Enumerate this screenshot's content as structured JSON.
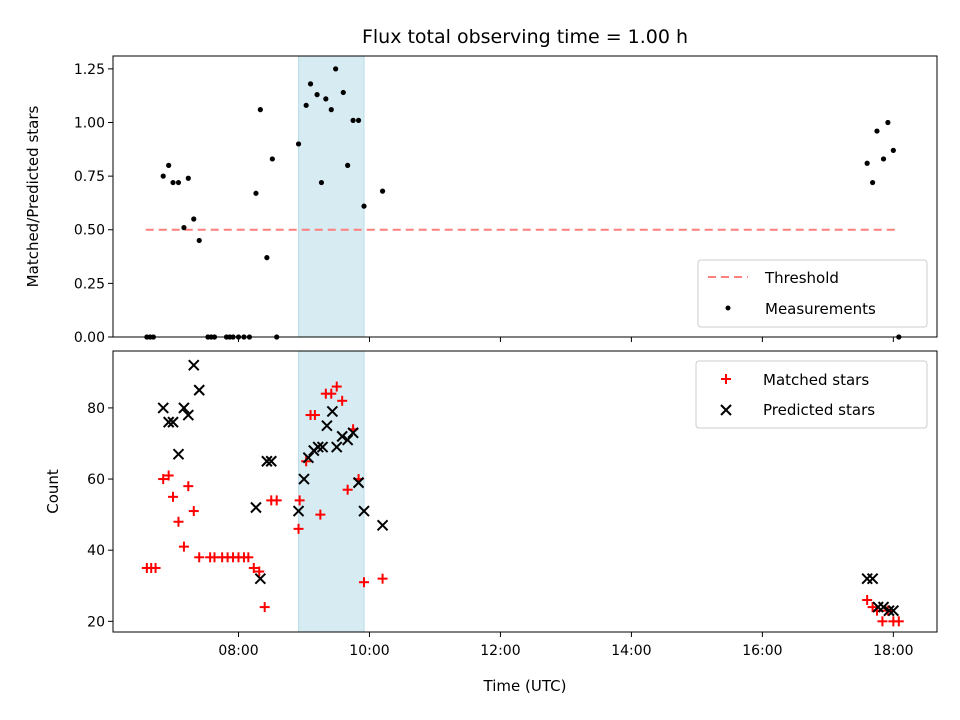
{
  "chart_data": [
    {
      "type": "scatter",
      "title": "Flux total observing time = 1.00 h",
      "ylabel": "Matched/Predicted stars",
      "xlabel": "",
      "ylim": [
        0,
        1.31
      ],
      "xlim": [
        "06:05",
        "18:40"
      ],
      "yticks": [
        "0.00",
        "0.25",
        "0.50",
        "0.75",
        "1.00",
        "1.25"
      ],
      "shaded_interval": [
        "08:55",
        "09:55"
      ],
      "threshold": {
        "name": "Threshold",
        "value": 0.5,
        "x_start": "06:35",
        "x_end": "18:05",
        "color": "#ff7f7f"
      },
      "legend_position": "bottom-right",
      "series": [
        {
          "name": "Measurements",
          "color": "#000000",
          "points": [
            [
              "06:36",
              0.0
            ],
            [
              "06:39",
              0.0
            ],
            [
              "06:42",
              0.0
            ],
            [
              "06:51",
              0.75
            ],
            [
              "06:56",
              0.8
            ],
            [
              "07:00",
              0.72
            ],
            [
              "07:05",
              0.72
            ],
            [
              "07:10",
              0.51
            ],
            [
              "07:14",
              0.74
            ],
            [
              "07:19",
              0.55
            ],
            [
              "07:24",
              0.45
            ],
            [
              "07:32",
              0.0
            ],
            [
              "07:35",
              0.0
            ],
            [
              "07:38",
              0.0
            ],
            [
              "07:49",
              0.0
            ],
            [
              "07:52",
              0.0
            ],
            [
              "07:55",
              0.0
            ],
            [
              "08:00",
              0.0
            ],
            [
              "08:05",
              0.0
            ],
            [
              "08:10",
              0.0
            ],
            [
              "08:16",
              0.67
            ],
            [
              "08:20",
              1.06
            ],
            [
              "08:26",
              0.37
            ],
            [
              "08:31",
              0.83
            ],
            [
              "08:35",
              0.0
            ],
            [
              "08:55",
              0.9
            ],
            [
              "09:02",
              1.08
            ],
            [
              "09:06",
              1.18
            ],
            [
              "09:12",
              1.13
            ],
            [
              "09:16",
              0.72
            ],
            [
              "09:20",
              1.11
            ],
            [
              "09:25",
              1.06
            ],
            [
              "09:29",
              1.25
            ],
            [
              "09:36",
              1.14
            ],
            [
              "09:40",
              0.8
            ],
            [
              "09:45",
              1.01
            ],
            [
              "09:50",
              1.01
            ],
            [
              "09:55",
              0.61
            ],
            [
              "10:12",
              0.68
            ],
            [
              "17:36",
              0.81
            ],
            [
              "17:41",
              0.72
            ],
            [
              "17:45",
              0.96
            ],
            [
              "17:51",
              0.83
            ],
            [
              "17:55",
              1.0
            ],
            [
              "18:00",
              0.87
            ],
            [
              "18:05",
              0.0
            ]
          ]
        }
      ]
    },
    {
      "type": "scatter",
      "title": "",
      "xlabel": "Time (UTC)",
      "ylabel": "Count",
      "ylim": [
        17,
        96
      ],
      "xlim": [
        "06:05",
        "18:40"
      ],
      "yticks": [
        "20",
        "40",
        "60",
        "80"
      ],
      "xticks": [
        "08:00",
        "10:00",
        "12:00",
        "14:00",
        "16:00",
        "18:00"
      ],
      "shaded_interval": [
        "08:55",
        "09:55"
      ],
      "legend_position": "top-right",
      "series": [
        {
          "name": "Matched stars",
          "color": "#ff0000",
          "marker": "plus",
          "points": [
            [
              "06:36",
              35
            ],
            [
              "06:40",
              35
            ],
            [
              "06:44",
              35
            ],
            [
              "06:51",
              60
            ],
            [
              "06:56",
              61
            ],
            [
              "07:00",
              55
            ],
            [
              "07:05",
              48
            ],
            [
              "07:10",
              41
            ],
            [
              "07:14",
              58
            ],
            [
              "07:19",
              51
            ],
            [
              "07:24",
              38
            ],
            [
              "07:34",
              38
            ],
            [
              "07:38",
              38
            ],
            [
              "07:45",
              38
            ],
            [
              "07:50",
              38
            ],
            [
              "07:55",
              38
            ],
            [
              "08:00",
              38
            ],
            [
              "08:05",
              38
            ],
            [
              "08:09",
              38
            ],
            [
              "08:14",
              35
            ],
            [
              "08:19",
              34
            ],
            [
              "08:24",
              24
            ],
            [
              "08:30",
              54
            ],
            [
              "08:35",
              54
            ],
            [
              "08:55",
              46
            ],
            [
              "08:56",
              54
            ],
            [
              "09:02",
              65
            ],
            [
              "09:06",
              78
            ],
            [
              "09:10",
              78
            ],
            [
              "09:15",
              50
            ],
            [
              "09:20",
              84
            ],
            [
              "09:25",
              84
            ],
            [
              "09:30",
              86
            ],
            [
              "09:35",
              82
            ],
            [
              "09:40",
              57
            ],
            [
              "09:45",
              74
            ],
            [
              "09:50",
              60
            ],
            [
              "09:55",
              31
            ],
            [
              "10:12",
              32
            ],
            [
              "17:36",
              26
            ],
            [
              "17:41",
              24
            ],
            [
              "17:45",
              23
            ],
            [
              "17:50",
              20
            ],
            [
              "17:55",
              23
            ],
            [
              "18:00",
              20
            ],
            [
              "18:05",
              20
            ]
          ]
        },
        {
          "name": "Predicted stars",
          "color": "#000000",
          "marker": "x",
          "points": [
            [
              "06:51",
              80
            ],
            [
              "06:56",
              76
            ],
            [
              "07:00",
              76
            ],
            [
              "07:05",
              67
            ],
            [
              "07:10",
              80
            ],
            [
              "07:14",
              78
            ],
            [
              "07:19",
              92
            ],
            [
              "07:24",
              85
            ],
            [
              "08:16",
              52
            ],
            [
              "08:20",
              32
            ],
            [
              "08:26",
              65
            ],
            [
              "08:30",
              65
            ],
            [
              "08:55",
              51
            ],
            [
              "09:00",
              60
            ],
            [
              "09:04",
              66
            ],
            [
              "09:09",
              68
            ],
            [
              "09:13",
              69
            ],
            [
              "09:17",
              69
            ],
            [
              "09:21",
              75
            ],
            [
              "09:26",
              79
            ],
            [
              "09:30",
              69
            ],
            [
              "09:35",
              72
            ],
            [
              "09:40",
              71
            ],
            [
              "09:45",
              73
            ],
            [
              "09:50",
              59
            ],
            [
              "09:55",
              51
            ],
            [
              "10:12",
              47
            ],
            [
              "17:36",
              32
            ],
            [
              "17:41",
              32
            ],
            [
              "17:46",
              24
            ],
            [
              "17:51",
              24
            ],
            [
              "17:56",
              23
            ],
            [
              "18:00",
              23
            ]
          ]
        }
      ]
    }
  ]
}
